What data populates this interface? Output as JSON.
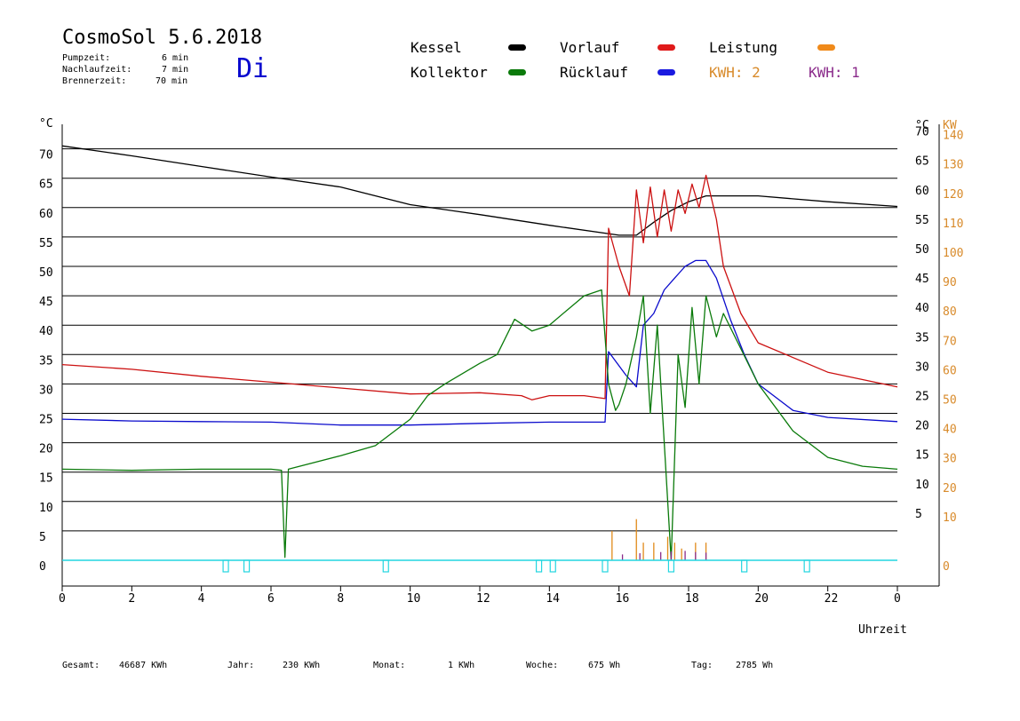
{
  "header": {
    "title": "CosmoSol 5.6.2018",
    "day": "Di",
    "times": [
      {
        "label": "Pumpzeit:",
        "value": "6 min"
      },
      {
        "label": "Nachlaufzeit:",
        "value": "7 min"
      },
      {
        "label": "Brennerzeit:",
        "value": "70 min"
      }
    ]
  },
  "legend": {
    "kessel": "Kessel",
    "kollektor": "Kollektor",
    "vorlauf": "Vorlauf",
    "ruecklauf": "Rücklauf",
    "leistung": "Leistung",
    "kwh2": "KWH: 2",
    "kwh1": "KWH: 1"
  },
  "colors": {
    "kessel": "#000000",
    "kollektor": "#0a7a0a",
    "vorlauf": "#cc1111",
    "ruecklauf": "#0a0acc",
    "leistung": "#e08a1a",
    "kwh2": "#d88a2a",
    "kwh1": "#8a2a8a",
    "pump": "#22d6e0"
  },
  "footer": [
    {
      "label": "Gesamt:",
      "value": "46687 KWh"
    },
    {
      "label": "Jahr:",
      "value": "230 KWh"
    },
    {
      "label": "Monat:",
      "value": "1 KWh"
    },
    {
      "label": "Woche:",
      "value": "675 Wh"
    },
    {
      "label": "Tag:",
      "value": "2785 Wh"
    }
  ],
  "chart_data": {
    "type": "line",
    "xlabel": "Uhrzeit",
    "ylabel_left": "°C",
    "ylabel_right_temp": "°C",
    "ylabel_right_power": "KW",
    "xlim": [
      0,
      24
    ],
    "ylim": [
      -3,
      75
    ],
    "x_ticks": [
      "0",
      "2",
      "4",
      "6",
      "8",
      "10",
      "12",
      "14",
      "16",
      "18",
      "20",
      "22",
      "0"
    ],
    "y_ticks_left": [
      "0",
      "5",
      "10",
      "15",
      "20",
      "25",
      "30",
      "35",
      "40",
      "45",
      "50",
      "55",
      "60",
      "65",
      "70"
    ],
    "y_ticks_right_temp": [
      "5",
      "10",
      "15",
      "20",
      "25",
      "30",
      "35",
      "40",
      "45",
      "50",
      "55",
      "60",
      "65",
      "70"
    ],
    "y_ticks_right_power": [
      "0",
      "10",
      "20",
      "30",
      "40",
      "50",
      "60",
      "70",
      "80",
      "90",
      "100",
      "110",
      "120",
      "130",
      "140"
    ],
    "grid": true,
    "series": [
      {
        "name": "Kessel",
        "key": "kessel",
        "points": [
          [
            0,
            70.5
          ],
          [
            2,
            68.8
          ],
          [
            4,
            67
          ],
          [
            6,
            65.2
          ],
          [
            8,
            63.5
          ],
          [
            10,
            60.5
          ],
          [
            12,
            58.8
          ],
          [
            14,
            57
          ],
          [
            16,
            55.3
          ],
          [
            16.5,
            55.3
          ],
          [
            17,
            57.5
          ],
          [
            17.5,
            59.5
          ],
          [
            18,
            61
          ],
          [
            18.5,
            62
          ],
          [
            19,
            62
          ],
          [
            20,
            62
          ],
          [
            22,
            61
          ],
          [
            24,
            60.2
          ]
        ]
      },
      {
        "name": "Vorlauf",
        "key": "vorlauf",
        "points": [
          [
            0,
            33.3
          ],
          [
            2,
            32.5
          ],
          [
            4,
            31.3
          ],
          [
            6,
            30.3
          ],
          [
            8,
            29.3
          ],
          [
            10,
            28.3
          ],
          [
            12,
            28.5
          ],
          [
            13.2,
            28
          ],
          [
            13.5,
            27.3
          ],
          [
            14,
            28
          ],
          [
            15,
            28
          ],
          [
            15.6,
            27.5
          ],
          [
            15.7,
            56.5
          ],
          [
            16,
            50
          ],
          [
            16.3,
            45
          ],
          [
            16.5,
            63
          ],
          [
            16.7,
            54
          ],
          [
            16.9,
            63.5
          ],
          [
            17.1,
            55
          ],
          [
            17.3,
            63
          ],
          [
            17.5,
            56
          ],
          [
            17.7,
            63
          ],
          [
            17.9,
            59
          ],
          [
            18.1,
            64
          ],
          [
            18.3,
            60
          ],
          [
            18.5,
            65.5
          ],
          [
            18.8,
            58
          ],
          [
            19,
            50
          ],
          [
            19.5,
            42
          ],
          [
            20,
            37
          ],
          [
            22,
            32
          ],
          [
            24,
            29.5
          ]
        ]
      },
      {
        "name": "Rücklauf",
        "key": "ruecklauf",
        "points": [
          [
            0,
            24
          ],
          [
            2,
            23.7
          ],
          [
            4,
            23.6
          ],
          [
            6,
            23.5
          ],
          [
            8,
            23
          ],
          [
            10,
            23
          ],
          [
            12,
            23.3
          ],
          [
            14,
            23.5
          ],
          [
            15.6,
            23.5
          ],
          [
            15.7,
            35.5
          ],
          [
            16.2,
            31.5
          ],
          [
            16.5,
            29.5
          ],
          [
            16.7,
            40
          ],
          [
            17,
            42
          ],
          [
            17.3,
            46
          ],
          [
            17.6,
            48
          ],
          [
            17.9,
            50
          ],
          [
            18.2,
            51
          ],
          [
            18.5,
            51
          ],
          [
            18.8,
            48
          ],
          [
            19.2,
            41
          ],
          [
            19.6,
            35
          ],
          [
            20,
            30
          ],
          [
            21,
            25.5
          ],
          [
            22,
            24.3
          ],
          [
            24,
            23.6
          ]
        ]
      },
      {
        "name": "Kollektor",
        "key": "kollektor",
        "points": [
          [
            0,
            15.5
          ],
          [
            2,
            15.3
          ],
          [
            4,
            15.5
          ],
          [
            6,
            15.5
          ],
          [
            6.3,
            15.3
          ],
          [
            6.4,
            0.5
          ],
          [
            6.5,
            15.5
          ],
          [
            8,
            17.8
          ],
          [
            9,
            19.5
          ],
          [
            10,
            24
          ],
          [
            10.5,
            28
          ],
          [
            11,
            30
          ],
          [
            12,
            33.5
          ],
          [
            12.5,
            35
          ],
          [
            13,
            41
          ],
          [
            13.5,
            39
          ],
          [
            14,
            40
          ],
          [
            14.5,
            42.5
          ],
          [
            15,
            45
          ],
          [
            15.5,
            46
          ],
          [
            15.7,
            30
          ],
          [
            15.9,
            25.5
          ],
          [
            16,
            26.5
          ],
          [
            16.2,
            30
          ],
          [
            16.5,
            38
          ],
          [
            16.7,
            45
          ],
          [
            16.9,
            25
          ],
          [
            17.1,
            40
          ],
          [
            17.3,
            20
          ],
          [
            17.5,
            0
          ],
          [
            17.7,
            35
          ],
          [
            17.9,
            26
          ],
          [
            18.1,
            43
          ],
          [
            18.3,
            30
          ],
          [
            18.5,
            45
          ],
          [
            18.8,
            38
          ],
          [
            19,
            42
          ],
          [
            19.5,
            36
          ],
          [
            20,
            30
          ],
          [
            21,
            22
          ],
          [
            22,
            17.5
          ],
          [
            23,
            16
          ],
          [
            24,
            15.5
          ]
        ]
      }
    ],
    "power_spikes": [
      [
        15.8,
        5
      ],
      [
        16.5,
        7
      ],
      [
        16.7,
        3
      ],
      [
        17.0,
        3
      ],
      [
        17.4,
        4
      ],
      [
        17.6,
        3
      ],
      [
        17.8,
        2
      ],
      [
        18.2,
        3
      ],
      [
        18.5,
        3
      ]
    ],
    "kwh1_spikes": [
      [
        16.1,
        1
      ],
      [
        16.6,
        1.2
      ],
      [
        17.2,
        1.4
      ],
      [
        17.5,
        1.5
      ],
      [
        17.9,
        1.6
      ],
      [
        18.2,
        1.4
      ],
      [
        18.5,
        1.3
      ]
    ],
    "pump_marks": [
      4.7,
      5.3,
      9.3,
      13.7,
      14.1,
      15.6,
      17.5,
      19.6,
      21.4
    ]
  }
}
